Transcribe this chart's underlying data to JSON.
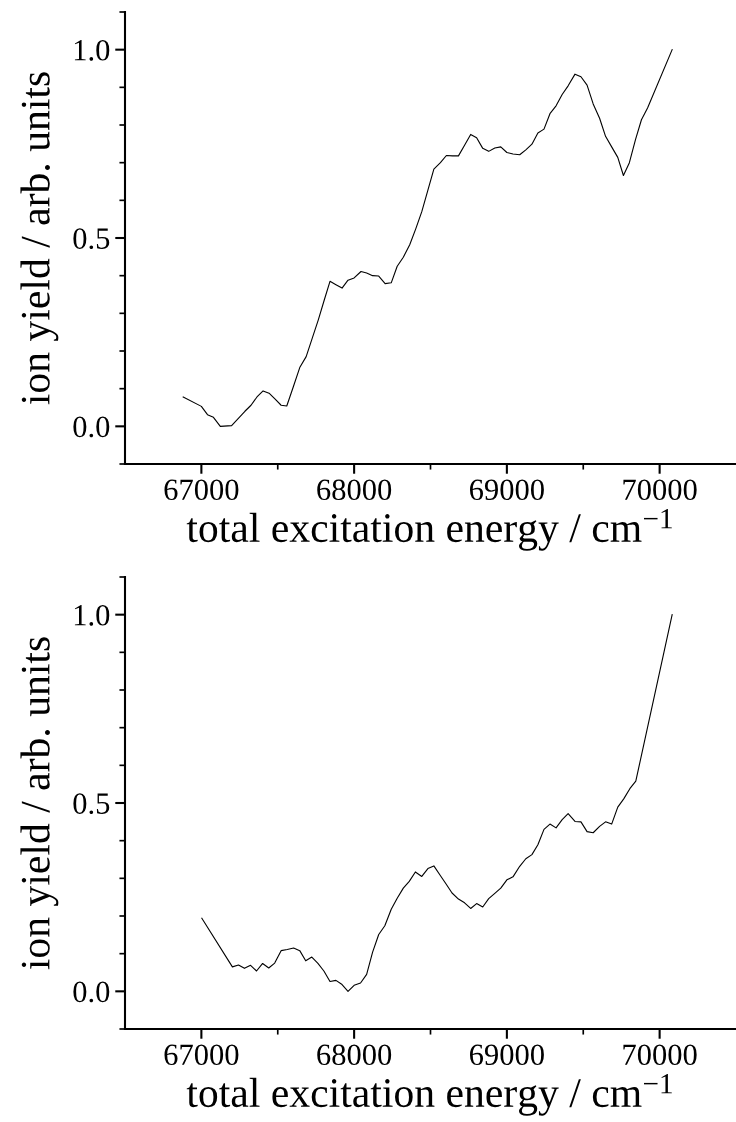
{
  "chart_data": [
    {
      "type": "line",
      "xlabel": "total excitation energy / cm$^{−1}$",
      "ylabel": "ion yield / arb. units",
      "xlim": [
        66500,
        70500
      ],
      "ylim": [
        -0.1,
        1.1
      ],
      "xticks": [
        67000,
        {
          "value": 67500,
          "label": null
        },
        68000,
        {
          "value": 68500,
          "label": null
        },
        69000,
        {
          "value": 69500,
          "label": null
        },
        70000
      ],
      "yticks": [
        {
          "value": -0.1,
          "label": null
        },
        {
          "value": 0,
          "label": "0.0"
        },
        {
          "value": 0.1,
          "label": null
        },
        {
          "value": 0.2,
          "label": null
        },
        {
          "value": 0.3,
          "label": null
        },
        {
          "value": 0.4,
          "label": null
        },
        {
          "value": 0.5,
          "label": "0.5"
        },
        {
          "value": 0.6,
          "label": null
        },
        {
          "value": 0.7,
          "label": null
        },
        {
          "value": 0.8,
          "label": null
        },
        {
          "value": 0.9,
          "label": null
        },
        {
          "value": 1.0,
          "label": "1.0"
        },
        {
          "value": 1.1,
          "label": null
        }
      ],
      "series": [
        {
          "color": "#000000",
          "x": [
            66881,
            67000,
            67040,
            67079,
            67124,
            67198,
            67285,
            67325,
            67364,
            67404,
            67443,
            67483,
            67522,
            67559,
            67602,
            67644,
            67686,
            67726,
            67765,
            67805,
            67842,
            67881,
            67921,
            67960,
            68000,
            68045,
            68082,
            68121,
            68161,
            68203,
            68243,
            68282,
            68322,
            68364,
            68404,
            68443,
            68483,
            68522,
            68565,
            68604,
            68644,
            68683,
            68723,
            68763,
            68802,
            68842,
            68881,
            68921,
            68960,
            69000,
            69040,
            69084,
            69124,
            69164,
            69203,
            69243,
            69282,
            69322,
            69362,
            69401,
            69446,
            69485,
            69525,
            69565,
            69607,
            69646,
            69686,
            69726,
            69763,
            69802,
            69842,
            69881,
            69921,
            70082
          ],
          "values": [
            0.078,
            0.053,
            0.031,
            0.024,
            0.0,
            0.002,
            0.04,
            0.056,
            0.078,
            0.094,
            0.088,
            0.072,
            0.056,
            0.054,
            0.105,
            0.156,
            0.185,
            0.234,
            0.282,
            0.336,
            0.385,
            0.376,
            0.367,
            0.388,
            0.394,
            0.411,
            0.407,
            0.4,
            0.399,
            0.379,
            0.381,
            0.425,
            0.449,
            0.482,
            0.525,
            0.57,
            0.627,
            0.683,
            0.7,
            0.719,
            0.718,
            0.718,
            0.746,
            0.775,
            0.766,
            0.738,
            0.73,
            0.739,
            0.742,
            0.727,
            0.723,
            0.721,
            0.734,
            0.749,
            0.779,
            0.789,
            0.83,
            0.851,
            0.881,
            0.904,
            0.935,
            0.928,
            0.906,
            0.856,
            0.818,
            0.77,
            0.742,
            0.714,
            0.666,
            0.7,
            0.761,
            0.814,
            0.845,
            1.0
          ]
        }
      ]
    },
    {
      "type": "line",
      "xlabel": "total excitation energy / cm$^{−1}$",
      "ylabel": "ion yield / arb. units",
      "xlim": [
        66500,
        70500
      ],
      "ylim": [
        -0.1,
        1.1
      ],
      "xticks": [
        67000,
        {
          "value": 67500,
          "label": null
        },
        68000,
        {
          "value": 68500,
          "label": null
        },
        69000,
        {
          "value": 69500,
          "label": null
        },
        70000
      ],
      "yticks": [
        {
          "value": -0.1,
          "label": null
        },
        {
          "value": 0,
          "label": "0.0"
        },
        {
          "value": 0.1,
          "label": null
        },
        {
          "value": 0.2,
          "label": null
        },
        {
          "value": 0.3,
          "label": null
        },
        {
          "value": 0.4,
          "label": null
        },
        {
          "value": 0.5,
          "label": "0.5"
        },
        {
          "value": 0.6,
          "label": null
        },
        {
          "value": 0.7,
          "label": null
        },
        {
          "value": 0.8,
          "label": null
        },
        {
          "value": 0.9,
          "label": null
        },
        {
          "value": 1.0,
          "label": "1.0"
        },
        {
          "value": 1.1,
          "label": null
        }
      ],
      "series": [
        {
          "color": "#000000",
          "x": [
            67003,
            67203,
            67243,
            67282,
            67322,
            67361,
            67401,
            67441,
            67480,
            67522,
            67562,
            67604,
            67644,
            67683,
            67723,
            67763,
            67802,
            67842,
            67881,
            67921,
            67960,
            68000,
            68042,
            68082,
            68121,
            68161,
            68201,
            68243,
            68282,
            68322,
            68361,
            68401,
            68443,
            68483,
            68522,
            68562,
            68602,
            68641,
            68683,
            68723,
            68763,
            68802,
            68842,
            68881,
            68921,
            68960,
            69000,
            69040,
            69084,
            69124,
            69164,
            69203,
            69243,
            69282,
            69322,
            69362,
            69401,
            69446,
            69485,
            69525,
            69565,
            69607,
            69646,
            69686,
            69726,
            69765,
            69805,
            69844,
            70082
          ],
          "values": [
            0.194,
            0.065,
            0.07,
            0.061,
            0.069,
            0.054,
            0.074,
            0.062,
            0.075,
            0.108,
            0.111,
            0.115,
            0.108,
            0.081,
            0.091,
            0.074,
            0.054,
            0.026,
            0.029,
            0.018,
            0.0,
            0.016,
            0.022,
            0.045,
            0.104,
            0.151,
            0.174,
            0.218,
            0.247,
            0.274,
            0.292,
            0.317,
            0.305,
            0.326,
            0.333,
            0.309,
            0.285,
            0.261,
            0.245,
            0.235,
            0.22,
            0.233,
            0.224,
            0.246,
            0.26,
            0.274,
            0.296,
            0.304,
            0.332,
            0.352,
            0.363,
            0.389,
            0.43,
            0.444,
            0.434,
            0.456,
            0.472,
            0.451,
            0.45,
            0.424,
            0.421,
            0.438,
            0.45,
            0.444,
            0.489,
            0.511,
            0.538,
            0.558,
            1.0
          ]
        }
      ]
    }
  ]
}
